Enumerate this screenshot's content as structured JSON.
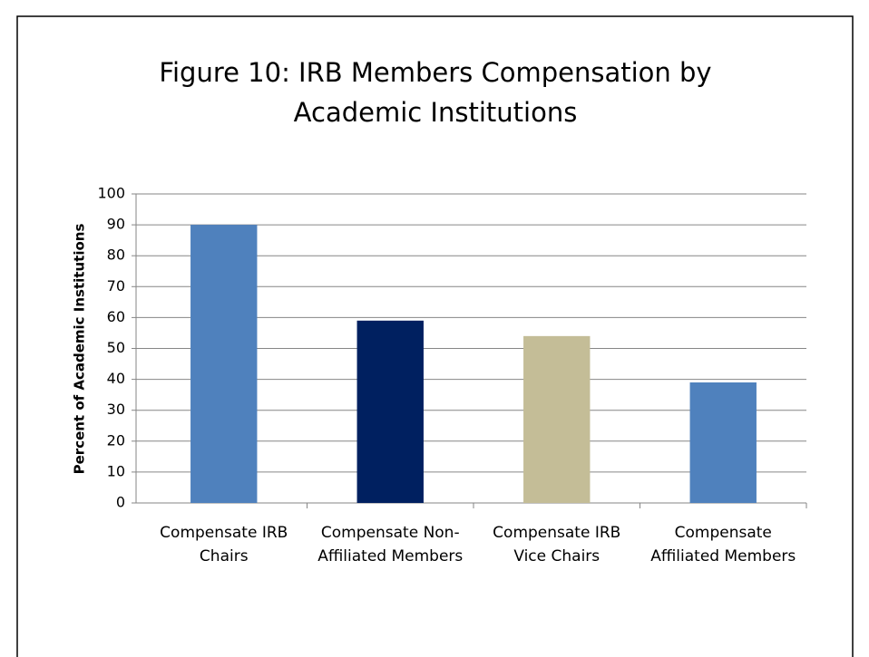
{
  "chart_data": {
    "type": "bar",
    "title": "Figure 10: IRB Members Compensation by Academic Institutions",
    "y_label": "Percent of Academic Institutions",
    "categories": [
      "Compensate IRB Chairs",
      "Compensate Non-Affiliated Members",
      "Compensate IRB Vice Chairs",
      "Compensate Affiliated Members"
    ],
    "values": [
      90,
      59,
      54,
      39
    ],
    "colors": [
      "#4f81bd",
      "#002060",
      "#c4bd97",
      "#4f81bd"
    ],
    "ylim": [
      0,
      100
    ],
    "yticks": [
      0,
      10,
      20,
      30,
      40,
      50,
      60,
      70,
      80,
      90,
      100
    ],
    "grid": true
  }
}
